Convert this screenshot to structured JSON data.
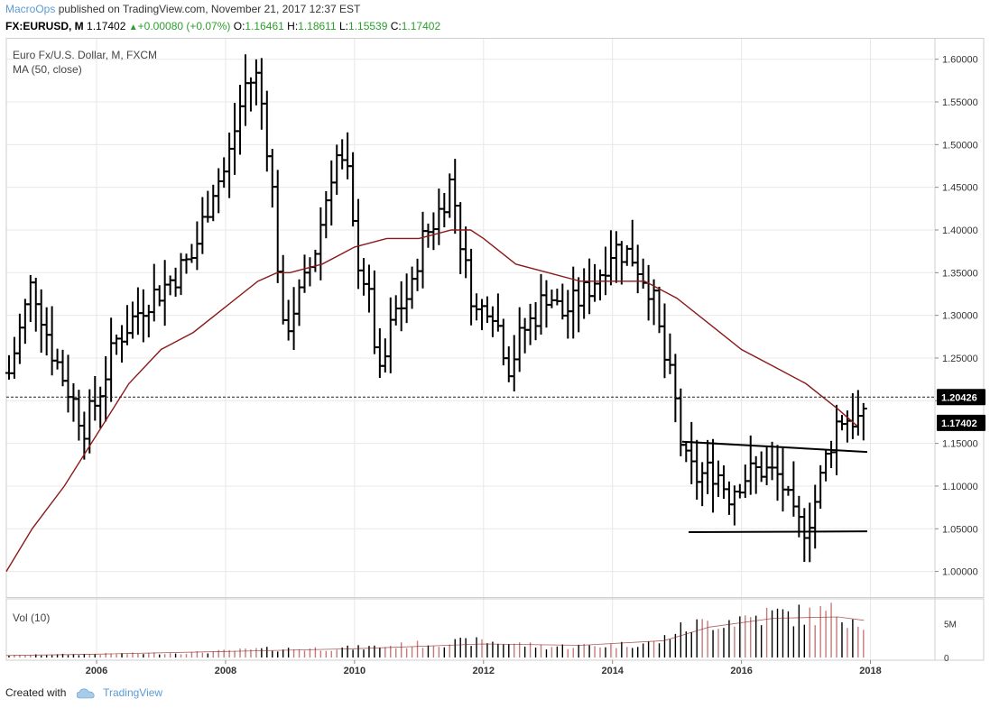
{
  "header": {
    "author": "MacroOps",
    "published_text": "published on TradingView.com, November 21, 2017 12:37 EST",
    "symbol": "FX:EURUSD, M",
    "last": "1.17402",
    "change": "+0.00080 (+0.07%)",
    "o_label": "O:",
    "o_value": "1.16461",
    "h_label": "H:",
    "h_value": "1.18611",
    "l_label": "L:",
    "l_value": "1.15539",
    "c_label": "C:",
    "c_value": "1.17402"
  },
  "footer": {
    "created_with": "Created with",
    "brand": "TradingView"
  },
  "icons": {
    "up_arrow": "triangle-up-icon",
    "logo": "tradingview-cloud-icon"
  },
  "colors": {
    "bars": "#000000",
    "ma": "#8b1a1a",
    "vol_up": "#c47a7a",
    "vol_down": "#000000",
    "grid": "#e8e8e8",
    "brand": "#5b9bd5"
  },
  "chart_data": {
    "type": "ohlc",
    "title": "Euro Fx/U.S. Dollar, M, FXCM",
    "indicator_label": "MA (50, close)",
    "volume_label": "Vol (10)",
    "x_ticks": [
      "2006",
      "2008",
      "2010",
      "2012",
      "2014",
      "2016",
      "2018"
    ],
    "y_ticks": [
      "1.00000",
      "1.05000",
      "1.10000",
      "1.15000",
      "1.20000",
      "1.25000",
      "1.30000",
      "1.35000",
      "1.40000",
      "1.45000",
      "1.50000",
      "1.55000",
      "1.60000"
    ],
    "volume_ticks": [
      "5M",
      "0"
    ],
    "xlim": [
      2004.6,
      2019.0
    ],
    "ylim": [
      0.97,
      1.625
    ],
    "vol_max": 8,
    "price_labels": {
      "reference": "1.20426",
      "last": "1.17402"
    },
    "reference_line": 1.20426,
    "anchors": {
      "x": [
        2004.6,
        2005.0,
        2005.3,
        2005.8,
        2006.0,
        2006.3,
        2006.8,
        2007.0,
        2007.5,
        2007.8,
        2008.0,
        2008.3,
        2008.5,
        2008.7,
        2008.9,
        2009.0,
        2009.2,
        2009.4,
        2009.7,
        2009.9,
        2010.0,
        2010.2,
        2010.4,
        2010.6,
        2010.9,
        2011.0,
        2011.3,
        2011.5,
        2011.7,
        2011.9,
        2012.1,
        2012.4,
        2012.6,
        2012.8,
        2013.0,
        2013.2,
        2013.5,
        2013.8,
        2014.0,
        2014.3,
        2014.6,
        2014.8,
        2014.95,
        2015.1,
        2015.3,
        2015.6,
        2015.8,
        2016.0,
        2016.3,
        2016.6,
        2016.8,
        2016.95,
        2017.1,
        2017.3,
        2017.5,
        2017.7,
        2017.9
      ],
      "close": [
        1.22,
        1.34,
        1.26,
        1.17,
        1.2,
        1.27,
        1.32,
        1.33,
        1.37,
        1.45,
        1.47,
        1.57,
        1.58,
        1.47,
        1.27,
        1.3,
        1.33,
        1.38,
        1.49,
        1.46,
        1.38,
        1.33,
        1.22,
        1.3,
        1.33,
        1.38,
        1.42,
        1.46,
        1.36,
        1.3,
        1.32,
        1.24,
        1.28,
        1.3,
        1.33,
        1.3,
        1.32,
        1.35,
        1.38,
        1.37,
        1.33,
        1.25,
        1.21,
        1.13,
        1.11,
        1.12,
        1.09,
        1.11,
        1.12,
        1.11,
        1.06,
        1.05,
        1.07,
        1.13,
        1.18,
        1.18,
        1.174
      ]
    },
    "ma_points": {
      "x": [
        2004.6,
        2005.0,
        2005.5,
        2006.0,
        2006.5,
        2007.0,
        2007.5,
        2008.0,
        2008.5,
        2008.8,
        2009.0,
        2009.5,
        2010.0,
        2010.5,
        2011.0,
        2011.5,
        2011.8,
        2012.0,
        2012.5,
        2013.0,
        2013.5,
        2014.0,
        2014.5,
        2015.0,
        2015.5,
        2016.0,
        2016.5,
        2017.0,
        2017.5,
        2017.8
      ],
      "value": [
        1.0,
        1.05,
        1.1,
        1.16,
        1.22,
        1.26,
        1.28,
        1.31,
        1.34,
        1.35,
        1.35,
        1.36,
        1.38,
        1.39,
        1.39,
        1.4,
        1.4,
        1.39,
        1.36,
        1.35,
        1.34,
        1.34,
        1.34,
        1.32,
        1.29,
        1.26,
        1.24,
        1.22,
        1.19,
        1.17
      ]
    },
    "volume_points": {
      "x": [
        2004.6,
        2006.0,
        2007.5,
        2008.5,
        2010.0,
        2011.5,
        2012.0,
        2013.0,
        2014.0,
        2014.7,
        2015.0,
        2015.5,
        2016.0,
        2016.5,
        2017.0,
        2017.5,
        2017.9
      ],
      "value": [
        0.3,
        0.5,
        0.7,
        1.2,
        1.4,
        2.2,
        2.4,
        1.6,
        1.8,
        2.2,
        4.0,
        5.2,
        5.8,
        6.4,
        6.2,
        6.6,
        5.5
      ]
    },
    "vol_ma_points": {
      "x": [
        2004.6,
        2006.0,
        2008.0,
        2010.0,
        2012.0,
        2013.5,
        2014.8,
        2015.5,
        2016.5,
        2017.5,
        2017.9
      ],
      "value": [
        0.3,
        0.5,
        0.9,
        1.3,
        2.0,
        1.8,
        2.5,
        4.5,
        5.8,
        6.0,
        5.5
      ]
    },
    "trendlines": [
      {
        "x1": 2015.08,
        "y1": 1.152,
        "x2": 2017.95,
        "y2": 1.14
      },
      {
        "x1": 2015.18,
        "y1": 1.046,
        "x2": 2017.95,
        "y2": 1.047
      }
    ]
  }
}
